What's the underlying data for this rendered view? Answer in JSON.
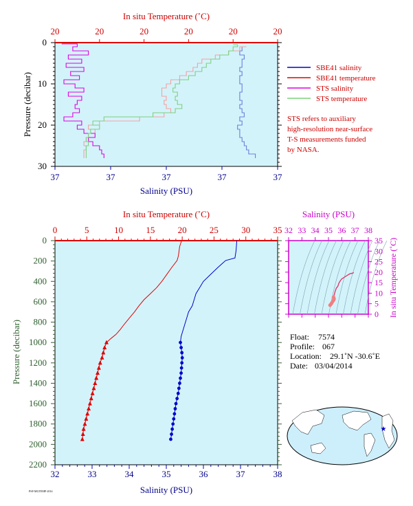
{
  "colors": {
    "panel_bg": "#d3f3fb",
    "temp": "#e00000",
    "salinity": "#0000cc",
    "sts_salinity": "#e000e0",
    "sts_temperature": "#7fcf7f",
    "sbe_temperature_light": "#f5a0a0",
    "sbe_salinity_light": "#6a7fd9",
    "ts_axis": "#cc00cc",
    "pressure_axis": "#2f5f2f"
  },
  "top_panel": {
    "top_axis_title": "In situ Temperature (˚C)",
    "bottom_axis_title": "Salinity (PSU)",
    "y_axis_title": "Pressure (decibar)",
    "top_tick_labels": [
      "20",
      "20",
      "20",
      "20",
      "20",
      "20"
    ],
    "bottom_tick_labels": [
      "37",
      "37",
      "37",
      "37",
      "37"
    ],
    "y_tick_labels": [
      "0",
      "10",
      "20",
      "30"
    ],
    "legend": [
      {
        "label": "SBE41 salinity",
        "color": "#0000cc"
      },
      {
        "label": "SBE41 temperature",
        "color": "#e00000"
      },
      {
        "label": "STS salinity",
        "color": "#e000e0"
      },
      {
        "label": "STS temperature",
        "color": "#7fcf7f"
      }
    ],
    "note_lines": [
      "STS refers to auxiliary",
      "high-resolution near-surface",
      "T-S measurements funded",
      "by NASA."
    ]
  },
  "main_panel": {
    "top_axis_title": "In situ Temperature (˚C)",
    "bottom_axis_title": "Salinity (PSU)",
    "y_axis_title": "Pressure (decibar)",
    "top_tick_labels": [
      "0",
      "5",
      "10",
      "15",
      "20",
      "25",
      "30",
      "35"
    ],
    "bottom_tick_labels": [
      "32",
      "33",
      "34",
      "35",
      "36",
      "37",
      "38"
    ],
    "y_tick_labels": [
      "0",
      "200",
      "400",
      "600",
      "800",
      "1000",
      "1200",
      "1400",
      "1600",
      "1800",
      "2000",
      "2200"
    ]
  },
  "ts_panel": {
    "top_axis_title": "Salinity (PSU)",
    "right_axis_title": "In situ Temperature (˚C)",
    "top_tick_labels": [
      "32",
      "33",
      "34",
      "35",
      "36",
      "37",
      "38"
    ],
    "right_tick_labels": [
      "0",
      "5",
      "10",
      "15",
      "20",
      "25",
      "30",
      "35"
    ]
  },
  "info": {
    "float_label": "Float:",
    "float_value": "7574",
    "profile_label": "Profile:",
    "profile_value": "067",
    "location_label": "Location:",
    "location_value": "29.1˚N  -30.6˚E",
    "date_label": "Date:",
    "date_value": "03/04/2014"
  },
  "map": {
    "marker_icon": "blue-star-icon"
  },
  "chart_data": [
    {
      "type": "line",
      "title": "",
      "xlabel": "Salinity (PSU)",
      "x2label": "In situ Temperature (˚C)",
      "ylabel": "Pressure (decibar)",
      "ylim": [
        0,
        30
      ],
      "y_inverted": true,
      "grid": false,
      "legend_placement": "right",
      "series": [
        {
          "name": "SBE41 salinity",
          "y": [
            1,
            2,
            3,
            4,
            5,
            6,
            7,
            8,
            9,
            10,
            11,
            12,
            13,
            14,
            15,
            16,
            17,
            18,
            19,
            20,
            21,
            22,
            23,
            24,
            25,
            26,
            27,
            28
          ],
          "x_frac": [
            0.83,
            0.84,
            0.83,
            0.85,
            0.84,
            0.84,
            0.83,
            0.84,
            0.83,
            0.83,
            0.84,
            0.84,
            0.83,
            0.83,
            0.84,
            0.83,
            0.84,
            0.85,
            0.83,
            0.84,
            0.82,
            0.83,
            0.83,
            0.84,
            0.85,
            0.86,
            0.87,
            0.9
          ]
        },
        {
          "name": "SBE41 temperature",
          "y": [
            1,
            2,
            3,
            4,
            5,
            6,
            7,
            8,
            9,
            10,
            11,
            12,
            13,
            14,
            15,
            16,
            17,
            18,
            19,
            20,
            21,
            22,
            23,
            24,
            25,
            26,
            27,
            28
          ],
          "x_frac": [
            0.86,
            0.83,
            0.78,
            0.72,
            0.66,
            0.64,
            0.62,
            0.59,
            0.56,
            0.52,
            0.5,
            0.48,
            0.48,
            0.5,
            0.49,
            0.5,
            0.52,
            0.49,
            0.38,
            0.2,
            0.15,
            0.18,
            0.15,
            0.14,
            0.13,
            0.14,
            0.13,
            0.13
          ]
        },
        {
          "name": "STS salinity",
          "y": [
            0.3,
            1,
            2,
            3,
            4,
            5,
            6,
            7,
            8,
            9,
            10,
            11,
            12,
            13,
            14,
            15,
            16,
            17,
            18,
            19,
            20,
            21,
            22,
            23,
            24,
            25,
            26,
            27,
            28
          ],
          "x_frac": [
            0.03,
            0.1,
            0.08,
            0.15,
            0.06,
            0.12,
            0.05,
            0.13,
            0.07,
            0.11,
            0.04,
            0.09,
            0.13,
            0.06,
            0.12,
            0.1,
            0.09,
            0.11,
            0.08,
            0.04,
            0.12,
            0.1,
            0.13,
            0.18,
            0.15,
            0.17,
            0.2,
            0.21,
            0.22
          ]
        },
        {
          "name": "STS temperature",
          "y": [
            0.5,
            1,
            2,
            3,
            4,
            5,
            6,
            7,
            8,
            9,
            10,
            11,
            12,
            13,
            14,
            15,
            16,
            17,
            18,
            19,
            20,
            21,
            22,
            23,
            24,
            25,
            26,
            27,
            28
          ],
          "x_frac": [
            0.8,
            0.82,
            0.8,
            0.78,
            0.74,
            0.7,
            0.68,
            0.66,
            0.63,
            0.6,
            0.56,
            0.54,
            0.53,
            0.55,
            0.54,
            0.55,
            0.57,
            0.54,
            0.44,
            0.22,
            0.17,
            0.2,
            0.16,
            0.15,
            0.14,
            0.15,
            0.14,
            0.14,
            0.14
          ]
        }
      ]
    },
    {
      "type": "line",
      "title": "",
      "xlabel": "Salinity (PSU)",
      "x2label": "In situ Temperature (˚C)",
      "ylabel": "Pressure (decibar)",
      "xlim": [
        32,
        38
      ],
      "x2lim": [
        0,
        35
      ],
      "ylim": [
        0,
        2200
      ],
      "y_inverted": true,
      "grid": false,
      "series": [
        {
          "name": "Temperature",
          "points": [
            [
              19.9,
              0
            ],
            [
              19.6,
              60
            ],
            [
              19.4,
              150
            ],
            [
              19.2,
              195
            ],
            [
              18.4,
              260
            ],
            [
              17.6,
              330
            ],
            [
              16.8,
              400
            ],
            [
              16.0,
              460
            ],
            [
              15.0,
              520
            ],
            [
              14.0,
              580
            ],
            [
              13.2,
              640
            ],
            [
              12.5,
              700
            ],
            [
              11.7,
              760
            ],
            [
              10.9,
              820
            ],
            [
              10.3,
              870
            ],
            [
              9.6,
              920
            ],
            [
              8.8,
              960
            ],
            [
              8.1,
              1000
            ],
            [
              7.8,
              1050
            ],
            [
              7.6,
              1100
            ],
            [
              7.4,
              1150
            ],
            [
              7.1,
              1200
            ],
            [
              6.9,
              1250
            ],
            [
              6.7,
              1300
            ],
            [
              6.5,
              1350
            ],
            [
              6.3,
              1400
            ],
            [
              6.1,
              1450
            ],
            [
              5.9,
              1500
            ],
            [
              5.7,
              1550
            ],
            [
              5.5,
              1600
            ],
            [
              5.3,
              1650
            ],
            [
              5.1,
              1700
            ],
            [
              4.9,
              1750
            ],
            [
              4.7,
              1800
            ],
            [
              4.5,
              1850
            ],
            [
              4.4,
              1900
            ],
            [
              4.3,
              1950
            ]
          ]
        },
        {
          "name": "Salinity",
          "points": [
            [
              36.9,
              0
            ],
            [
              36.88,
              100
            ],
            [
              36.85,
              170
            ],
            [
              36.6,
              195
            ],
            [
              36.4,
              260
            ],
            [
              36.2,
              330
            ],
            [
              36.0,
              400
            ],
            [
              35.9,
              460
            ],
            [
              35.8,
              520
            ],
            [
              35.75,
              580
            ],
            [
              35.7,
              640
            ],
            [
              35.6,
              700
            ],
            [
              35.55,
              760
            ],
            [
              35.5,
              820
            ],
            [
              35.45,
              880
            ],
            [
              35.4,
              940
            ],
            [
              35.38,
              1000
            ],
            [
              35.4,
              1050
            ],
            [
              35.42,
              1100
            ],
            [
              35.43,
              1150
            ],
            [
              35.42,
              1200
            ],
            [
              35.41,
              1250
            ],
            [
              35.4,
              1300
            ],
            [
              35.38,
              1350
            ],
            [
              35.36,
              1400
            ],
            [
              35.34,
              1450
            ],
            [
              35.32,
              1500
            ],
            [
              35.29,
              1550
            ],
            [
              35.26,
              1600
            ],
            [
              35.24,
              1650
            ],
            [
              35.22,
              1700
            ],
            [
              35.2,
              1750
            ],
            [
              35.18,
              1800
            ],
            [
              35.16,
              1850
            ],
            [
              35.14,
              1900
            ],
            [
              35.12,
              1950
            ]
          ]
        }
      ]
    },
    {
      "type": "scatter",
      "title": "",
      "xlabel": "Salinity (PSU)",
      "ylabel": "In situ Temperature (˚C)",
      "xlim": [
        32,
        38
      ],
      "ylim": [
        0,
        35
      ],
      "series": [
        {
          "name": "T-S",
          "points": [
            [
              35.12,
              4.3
            ],
            [
              35.2,
              4.9
            ],
            [
              35.26,
              5.5
            ],
            [
              35.34,
              6.3
            ],
            [
              35.4,
              6.9
            ],
            [
              35.42,
              7.4
            ],
            [
              35.38,
              8.1
            ],
            [
              35.45,
              9.6
            ],
            [
              35.5,
              10.9
            ],
            [
              35.6,
              12.5
            ],
            [
              35.7,
              13.2
            ],
            [
              35.8,
              15.0
            ],
            [
              35.9,
              16.0
            ],
            [
              36.0,
              16.8
            ],
            [
              36.2,
              17.6
            ],
            [
              36.4,
              18.4
            ],
            [
              36.6,
              19.2
            ],
            [
              36.85,
              19.6
            ],
            [
              36.9,
              19.9
            ]
          ]
        }
      ]
    }
  ]
}
